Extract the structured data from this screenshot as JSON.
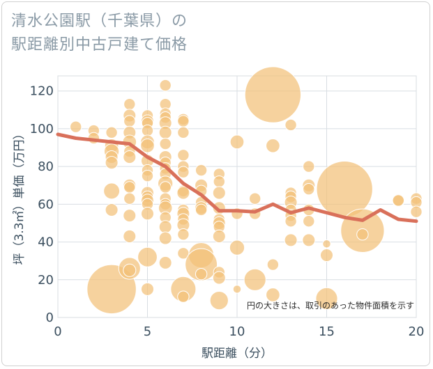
{
  "title": "清水公園駅（千葉県）の\n駅距離別中古戸建て価格",
  "chart_data": {
    "type": "scatter",
    "xlabel": "駅距離（分）",
    "ylabel": "坪（3.3㎡）単価（万円）",
    "xlim": [
      0,
      20
    ],
    "ylim": [
      0,
      128
    ],
    "xticks": [
      0,
      5,
      10,
      15,
      20
    ],
    "yticks": [
      0,
      20,
      40,
      60,
      80,
      100,
      120
    ],
    "grid": true,
    "note": "円の大きさは、取引のあった物件面積を示す",
    "bubble_color": "#f2c079",
    "line_color": "#d9705a",
    "points": [
      {
        "x": 1,
        "y": 101,
        "s": 1
      },
      {
        "x": 2,
        "y": 99,
        "s": 1
      },
      {
        "x": 2,
        "y": 95,
        "s": 1
      },
      {
        "x": 3,
        "y": 98,
        "s": 1
      },
      {
        "x": 3,
        "y": 91,
        "s": 1.2
      },
      {
        "x": 3,
        "y": 88,
        "s": 1.3
      },
      {
        "x": 3,
        "y": 85,
        "s": 1.1
      },
      {
        "x": 3,
        "y": 82,
        "s": 1.1
      },
      {
        "x": 3,
        "y": 67,
        "s": 1.4
      },
      {
        "x": 3,
        "y": 57,
        "s": 1.1
      },
      {
        "x": 3,
        "y": 15,
        "s": 4.3
      },
      {
        "x": 4,
        "y": 113,
        "s": 1
      },
      {
        "x": 4,
        "y": 107,
        "s": 1.1
      },
      {
        "x": 4,
        "y": 104,
        "s": 1
      },
      {
        "x": 4,
        "y": 98,
        "s": 1.1
      },
      {
        "x": 4,
        "y": 93,
        "s": 1.2
      },
      {
        "x": 4,
        "y": 88,
        "s": 1
      },
      {
        "x": 4,
        "y": 85,
        "s": 1.1
      },
      {
        "x": 4,
        "y": 70,
        "s": 1.1
      },
      {
        "x": 4,
        "y": 69,
        "s": 1
      },
      {
        "x": 4,
        "y": 63,
        "s": 1
      },
      {
        "x": 4,
        "y": 54,
        "s": 1.1
      },
      {
        "x": 4,
        "y": 43,
        "s": 1.1
      },
      {
        "x": 4,
        "y": 26,
        "s": 1.9
      },
      {
        "x": 4,
        "y": 25,
        "s": 1.1
      },
      {
        "x": 5,
        "y": 107,
        "s": 1
      },
      {
        "x": 5,
        "y": 104,
        "s": 1.1
      },
      {
        "x": 5,
        "y": 103,
        "s": 1
      },
      {
        "x": 5,
        "y": 99,
        "s": 1
      },
      {
        "x": 5,
        "y": 93,
        "s": 1.2
      },
      {
        "x": 5,
        "y": 91,
        "s": 1.2
      },
      {
        "x": 5,
        "y": 83,
        "s": 1.1
      },
      {
        "x": 5,
        "y": 78,
        "s": 1
      },
      {
        "x": 5,
        "y": 75,
        "s": 1
      },
      {
        "x": 5,
        "y": 66,
        "s": 1.1
      },
      {
        "x": 5,
        "y": 64,
        "s": 1
      },
      {
        "x": 5,
        "y": 62,
        "s": 1.1
      },
      {
        "x": 5,
        "y": 60,
        "s": 1
      },
      {
        "x": 5,
        "y": 55,
        "s": 1.1
      },
      {
        "x": 5,
        "y": 32,
        "s": 1.7
      },
      {
        "x": 5,
        "y": 15,
        "s": 1.1
      },
      {
        "x": 6,
        "y": 123,
        "s": 1
      },
      {
        "x": 6,
        "y": 113,
        "s": 1
      },
      {
        "x": 6,
        "y": 108,
        "s": 1
      },
      {
        "x": 6,
        "y": 106,
        "s": 1
      },
      {
        "x": 6,
        "y": 103,
        "s": 1.1
      },
      {
        "x": 6,
        "y": 98,
        "s": 1.1
      },
      {
        "x": 6,
        "y": 92,
        "s": 1
      },
      {
        "x": 6,
        "y": 85,
        "s": 1.1
      },
      {
        "x": 6,
        "y": 82,
        "s": 1
      },
      {
        "x": 6,
        "y": 79,
        "s": 1
      },
      {
        "x": 6,
        "y": 76,
        "s": 1
      },
      {
        "x": 6,
        "y": 71,
        "s": 1.3
      },
      {
        "x": 6,
        "y": 69,
        "s": 1
      },
      {
        "x": 6,
        "y": 63,
        "s": 1
      },
      {
        "x": 6,
        "y": 60,
        "s": 1
      },
      {
        "x": 6,
        "y": 58,
        "s": 1.2
      },
      {
        "x": 6,
        "y": 53,
        "s": 1
      },
      {
        "x": 6,
        "y": 48,
        "s": 1.1
      },
      {
        "x": 6,
        "y": 42,
        "s": 1.1
      },
      {
        "x": 6,
        "y": 29,
        "s": 1.1
      },
      {
        "x": 7,
        "y": 105,
        "s": 1
      },
      {
        "x": 7,
        "y": 104,
        "s": 1
      },
      {
        "x": 7,
        "y": 98,
        "s": 1
      },
      {
        "x": 7,
        "y": 86,
        "s": 1
      },
      {
        "x": 7,
        "y": 80,
        "s": 1
      },
      {
        "x": 7,
        "y": 77,
        "s": 1
      },
      {
        "x": 7,
        "y": 67,
        "s": 1
      },
      {
        "x": 7,
        "y": 66,
        "s": 1.1
      },
      {
        "x": 7,
        "y": 57,
        "s": 1
      },
      {
        "x": 7,
        "y": 55,
        "s": 1.1
      },
      {
        "x": 7,
        "y": 52,
        "s": 1
      },
      {
        "x": 7,
        "y": 49,
        "s": 1.1
      },
      {
        "x": 7,
        "y": 44,
        "s": 1
      },
      {
        "x": 7,
        "y": 34,
        "s": 1
      },
      {
        "x": 7,
        "y": 15,
        "s": 2.2
      },
      {
        "x": 7,
        "y": 11,
        "s": 1
      },
      {
        "x": 8,
        "y": 78,
        "s": 1
      },
      {
        "x": 8,
        "y": 70,
        "s": 1.1
      },
      {
        "x": 8,
        "y": 67,
        "s": 1
      },
      {
        "x": 8,
        "y": 61,
        "s": 1
      },
      {
        "x": 8,
        "y": 58,
        "s": 1.1
      },
      {
        "x": 8,
        "y": 57,
        "s": 1
      },
      {
        "x": 8,
        "y": 33,
        "s": 2.2
      },
      {
        "x": 8,
        "y": 28,
        "s": 2.8
      },
      {
        "x": 8,
        "y": 23,
        "s": 1
      },
      {
        "x": 9,
        "y": 76,
        "s": 1
      },
      {
        "x": 9,
        "y": 72,
        "s": 1
      },
      {
        "x": 9,
        "y": 66,
        "s": 1.1
      },
      {
        "x": 9,
        "y": 58,
        "s": 1.1
      },
      {
        "x": 9,
        "y": 52,
        "s": 1
      },
      {
        "x": 9,
        "y": 50,
        "s": 1.1
      },
      {
        "x": 9,
        "y": 48,
        "s": 1
      },
      {
        "x": 9,
        "y": 43,
        "s": 1.1
      },
      {
        "x": 9,
        "y": 24,
        "s": 1
      },
      {
        "x": 9,
        "y": 21,
        "s": 1.1
      },
      {
        "x": 9,
        "y": 9,
        "s": 1.6
      },
      {
        "x": 10,
        "y": 93,
        "s": 1.2
      },
      {
        "x": 10,
        "y": 55,
        "s": 1
      },
      {
        "x": 10,
        "y": 37,
        "s": 1.3
      },
      {
        "x": 10,
        "y": 15,
        "s": 0.7
      },
      {
        "x": 11,
        "y": 63,
        "s": 1
      },
      {
        "x": 11,
        "y": 55,
        "s": 1
      },
      {
        "x": 11,
        "y": 20,
        "s": 1.9
      },
      {
        "x": 12,
        "y": 118,
        "s": 4.9
      },
      {
        "x": 12,
        "y": 91,
        "s": 1.2
      },
      {
        "x": 12,
        "y": 28,
        "s": 1
      },
      {
        "x": 12,
        "y": 12,
        "s": 1.2
      },
      {
        "x": 13,
        "y": 102,
        "s": 1
      },
      {
        "x": 13,
        "y": 66,
        "s": 1
      },
      {
        "x": 13,
        "y": 64,
        "s": 1
      },
      {
        "x": 13,
        "y": 61,
        "s": 1.1
      },
      {
        "x": 13,
        "y": 57,
        "s": 1
      },
      {
        "x": 13,
        "y": 54,
        "s": 1
      },
      {
        "x": 13,
        "y": 51,
        "s": 1
      },
      {
        "x": 13,
        "y": 41,
        "s": 1.1
      },
      {
        "x": 14,
        "y": 80,
        "s": 1
      },
      {
        "x": 14,
        "y": 70,
        "s": 1.1
      },
      {
        "x": 14,
        "y": 68,
        "s": 1
      },
      {
        "x": 14,
        "y": 57,
        "s": 1
      },
      {
        "x": 14,
        "y": 51,
        "s": 1
      },
      {
        "x": 14,
        "y": 41,
        "s": 1.1
      },
      {
        "x": 15,
        "y": 39,
        "s": 0.7
      },
      {
        "x": 15,
        "y": 33,
        "s": 1.1
      },
      {
        "x": 15,
        "y": 10,
        "s": 1.9
      },
      {
        "x": 16,
        "y": 68,
        "s": 4.9
      },
      {
        "x": 17,
        "y": 46,
        "s": 3.8
      },
      {
        "x": 17,
        "y": 44,
        "s": 1
      },
      {
        "x": 19,
        "y": 62,
        "s": 1.1
      },
      {
        "x": 19,
        "y": 62,
        "s": 1
      },
      {
        "x": 20,
        "y": 63,
        "s": 1
      },
      {
        "x": 20,
        "y": 61,
        "s": 1
      },
      {
        "x": 20,
        "y": 56,
        "s": 1
      }
    ],
    "trend": {
      "x": [
        0,
        1,
        2,
        3,
        4,
        5,
        6,
        7,
        8,
        9,
        10,
        11,
        12,
        13,
        14,
        15,
        16,
        17,
        18,
        19,
        20
      ],
      "y": [
        97,
        95,
        94,
        93,
        92,
        85,
        80,
        71,
        65,
        56.5,
        56.5,
        56,
        60,
        55.5,
        58,
        55.5,
        53,
        51.5,
        57,
        52,
        51
      ]
    }
  }
}
